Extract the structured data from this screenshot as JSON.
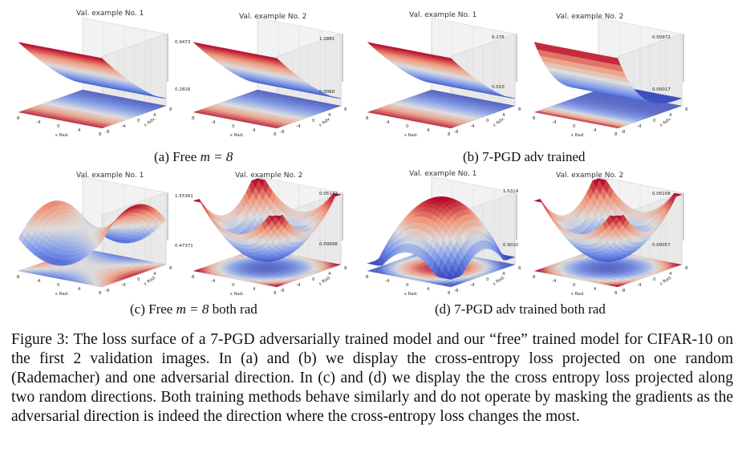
{
  "panels": [
    {
      "id": "a",
      "caption_pre": "(a) Free ",
      "caption_math": "m = 8",
      "caption_post": "",
      "plots": [
        {
          "title": "Val. example No. 1",
          "zmax": "0.9473",
          "zmin": "0.2816",
          "xlabel": "ε Rad.",
          "ylabel": "ε Adv."
        },
        {
          "title": "Val. example No. 2",
          "zmax": "1.0881",
          "zmin": "0.0060",
          "xlabel": "ε Rad.",
          "ylabel": "ε Adv."
        }
      ]
    },
    {
      "id": "b",
      "caption_pre": "(b) 7-PGD adv trained",
      "caption_math": "",
      "caption_post": "",
      "plots": [
        {
          "title": "Val. example No. 1",
          "zmax": "6.276",
          "zmin": "0.010",
          "xlabel": "ε Rad.",
          "ylabel": "ε Adv."
        },
        {
          "title": "Val. example No. 2",
          "zmax": "0.00972",
          "zmin": "0.00017",
          "xlabel": "ε Rad.",
          "ylabel": "ε Adv."
        }
      ]
    },
    {
      "id": "c",
      "caption_pre": "(c) Free ",
      "caption_math": "m = 8",
      "caption_post": " both rad",
      "plots": [
        {
          "title": "Val. example No. 1",
          "zmax": "1.55361",
          "zmin": "0.47371",
          "xlabel": "ε Rad.",
          "ylabel": "ε Rad."
        },
        {
          "title": "Val. example No. 2",
          "zmax": "0.05172",
          "zmin": "0.00698",
          "xlabel": "ε Rad.",
          "ylabel": "ε Rad."
        }
      ]
    },
    {
      "id": "d",
      "caption_pre": "(d) 7-PGD adv trained both rad",
      "caption_math": "",
      "caption_post": "",
      "plots": [
        {
          "title": "Val. example No. 1",
          "zmax": "1.5314",
          "zmin": "0.9010",
          "xlabel": "ε Rad.",
          "ylabel": "ε Rad."
        },
        {
          "title": "Val. example No. 2",
          "zmax": "0.00108",
          "zmin": "0.00057",
          "xlabel": "ε Rad.",
          "ylabel": "ε Rad."
        }
      ]
    }
  ],
  "tick_labels": [
    "-8",
    "-4",
    "0",
    "4",
    "8"
  ],
  "figure_caption": "Figure 3: The loss surface of a 7-PGD adversarially trained model and our “free” trained model for CIFAR-10 on the first 2 validation images. In (a) and (b) we display the cross-entropy loss projected on one random (Rademacher) and one adversarial direction. In (c) and (d) we display the the cross entropy loss projected along two random directions. Both training methods behave similarly and do not operate by masking the gradients as the adversarial direction is indeed the direction where the cross-entropy loss changes the most.",
  "colors": {
    "high": "#c0282d",
    "mid": "#e8e0dc",
    "low": "#3b4cc0"
  }
}
